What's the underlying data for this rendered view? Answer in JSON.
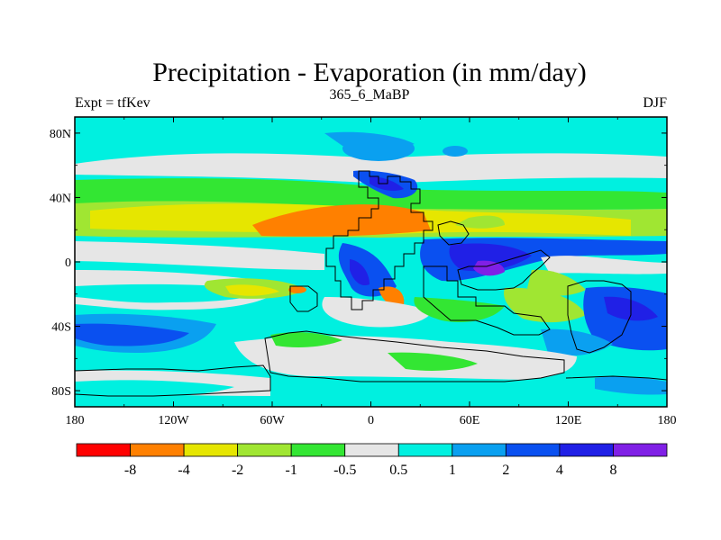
{
  "chart_data": {
    "type": "heatmap",
    "title": "Precipitation - Evaporation (in mm/day)",
    "subtitle_left": "Expt = tfKev",
    "subtitle_center": "365_6_MaBP",
    "subtitle_right": "DJF",
    "x_ticks": [
      "180",
      "120W",
      "60W",
      "0",
      "60E",
      "120E",
      "180"
    ],
    "y_ticks": [
      "80N",
      "40N",
      "0",
      "40S",
      "80S"
    ],
    "xlim": [
      -180,
      180
    ],
    "ylim": [
      -90,
      90
    ],
    "colorbar": {
      "labels": [
        "-8",
        "-4",
        "-2",
        "-1",
        "-0.5",
        "0.5",
        "1",
        "2",
        "4",
        "8"
      ],
      "colors": [
        "#ff0000",
        "#ff8000",
        "#e6e600",
        "#a0e632",
        "#33e633",
        "#e6e6e6",
        "#00f0e0",
        "#0aa0f0",
        "#0a50f0",
        "#2020e6",
        "#8020e6"
      ]
    }
  }
}
